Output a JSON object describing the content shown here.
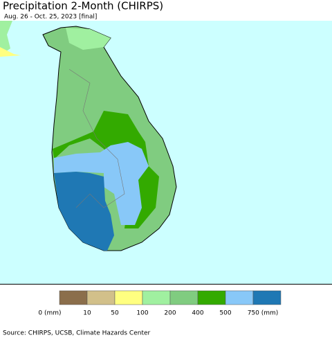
{
  "header": {
    "title": "Precipitation 2-Month (CHIRPS)",
    "subtitle": "Aug. 26 - Oct. 25, 2023 [final]"
  },
  "legend": {
    "colors": [
      "#8b6e4b",
      "#d2c08a",
      "#ffff80",
      "#a0f0a0",
      "#80cc80",
      "#33aa00",
      "#88c8f8",
      "#1f78b4"
    ],
    "labels": [
      "0 (mm)",
      "10",
      "50",
      "100",
      "200",
      "400",
      "500",
      "750 (mm)"
    ]
  },
  "footer": {
    "source": "Source: CHIRPS, UCSB, Climate Hazards Center"
  }
}
